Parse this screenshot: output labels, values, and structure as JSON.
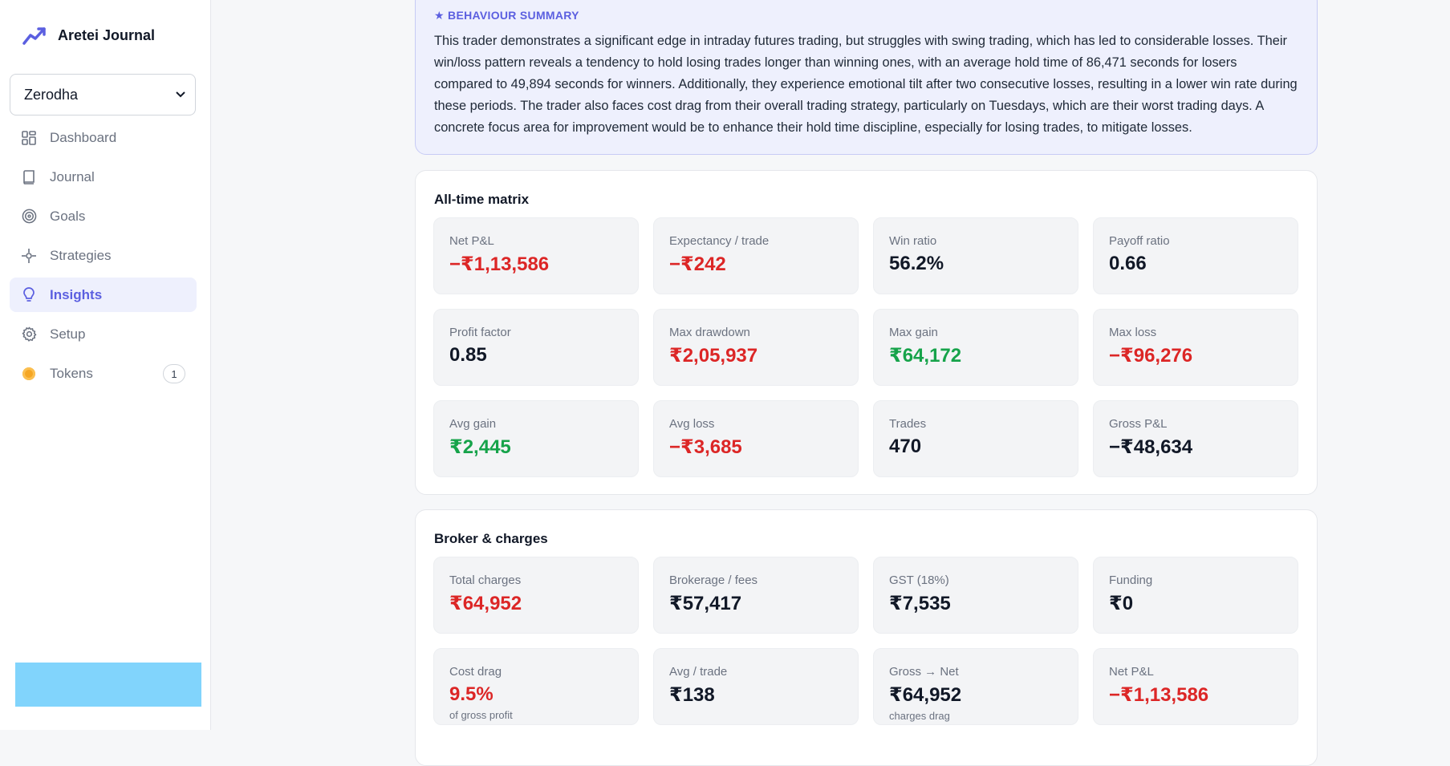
{
  "app": {
    "name": "Aretei Journal"
  },
  "account": {
    "selected": "Zerodha"
  },
  "nav": [
    {
      "label": "Dashboard",
      "icon": "grid-icon"
    },
    {
      "label": "Journal",
      "icon": "book-icon"
    },
    {
      "label": "Goals",
      "icon": "target-icon"
    },
    {
      "label": "Strategies",
      "icon": "crosshair-icon"
    },
    {
      "label": "Insights",
      "icon": "lightbulb-icon",
      "active": true
    },
    {
      "label": "Setup",
      "icon": "gear-icon"
    },
    {
      "label": "Tokens",
      "icon": "coin-icon",
      "badge": "1"
    }
  ],
  "summary": {
    "title": "★ BEHAVIOUR SUMMARY",
    "text": "This trader demonstrates a significant edge in intraday futures trading, but struggles with swing trading, which has led to considerable losses. Their win/loss pattern reveals a tendency to hold losing trades longer than winning ones, with an average hold time of 86,471 seconds for losers compared to 49,894 seconds for winners. Additionally, they experience emotional tilt after two consecutive losses, resulting in a lower win rate during these periods. The trader also faces cost drag from their overall trading strategy, particularly on Tuesdays, which are their worst trading days. A concrete focus area for improvement would be to enhance their hold time discipline, especially for losing trades, to mitigate losses."
  },
  "matrix": {
    "title": "All-time matrix",
    "tiles": [
      {
        "label": "Net P&L",
        "value": "−₹1,13,586",
        "tone": "red"
      },
      {
        "label": "Expectancy / trade",
        "value": "−₹242",
        "tone": "red"
      },
      {
        "label": "Win ratio",
        "value": "56.2%",
        "tone": ""
      },
      {
        "label": "Payoff ratio",
        "value": "0.66",
        "tone": ""
      },
      {
        "label": "Profit factor",
        "value": "0.85",
        "tone": ""
      },
      {
        "label": "Max drawdown",
        "value": "₹2,05,937",
        "tone": "red"
      },
      {
        "label": "Max gain",
        "value": "₹64,172",
        "tone": "green"
      },
      {
        "label": "Max loss",
        "value": "−₹96,276",
        "tone": "red"
      },
      {
        "label": "Avg gain",
        "value": "₹2,445",
        "tone": "green"
      },
      {
        "label": "Avg loss",
        "value": "−₹3,685",
        "tone": "red"
      },
      {
        "label": "Trades",
        "value": "470",
        "tone": ""
      },
      {
        "label": "Gross P&L",
        "value": "−₹48,634",
        "tone": ""
      }
    ]
  },
  "charges": {
    "title": "Broker & charges",
    "tiles": [
      {
        "label": "Total charges",
        "value": "₹64,952",
        "tone": "red"
      },
      {
        "label": "Brokerage / fees",
        "value": "₹57,417",
        "tone": ""
      },
      {
        "label": "GST (18%)",
        "value": "₹7,535",
        "tone": ""
      },
      {
        "label": "Funding",
        "value": "₹0",
        "tone": ""
      },
      {
        "label": "Cost drag",
        "value": "9.5%",
        "tone": "red",
        "sub": "of gross profit"
      },
      {
        "label": "Avg / trade",
        "value": "₹138",
        "tone": ""
      },
      {
        "label": "Gross → Net",
        "value": "₹64,952",
        "tone": "",
        "sub": "charges drag"
      },
      {
        "label": "Net P&L",
        "value": "−₹1,13,586",
        "tone": "red"
      }
    ]
  },
  "colors": {
    "accent": "#5b5fe0",
    "loss": "#dc2626",
    "gain": "#16a34a"
  }
}
